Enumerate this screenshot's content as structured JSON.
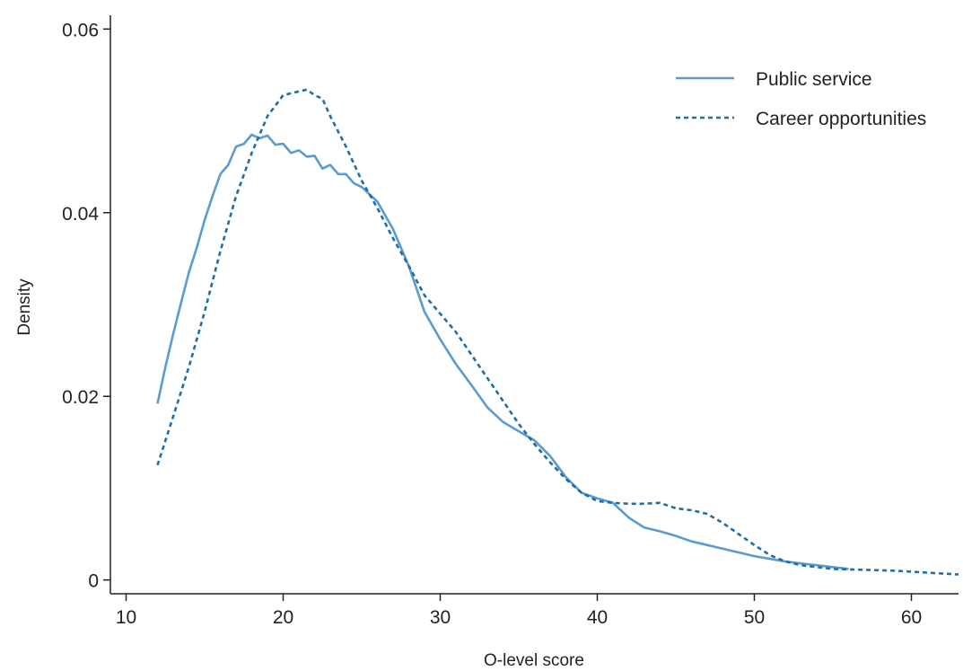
{
  "chart_data": {
    "type": "line",
    "xlabel": "O-level score",
    "ylabel": "Density",
    "xlim": [
      9,
      63
    ],
    "ylim": [
      -0.0015,
      0.0615
    ],
    "x_ticks": [
      10,
      20,
      30,
      40,
      50,
      60
    ],
    "x_tick_labels": [
      "10",
      "20",
      "30",
      "40",
      "50",
      "60"
    ],
    "y_ticks": [
      0,
      0.02,
      0.04,
      0.06
    ],
    "y_tick_labels": [
      "0",
      "0.02",
      "0.04",
      "0.06"
    ],
    "grid": false,
    "legend_position": "top-right",
    "series": [
      {
        "name": "Public service",
        "style": "solid",
        "color": "#5b9bcf",
        "x": [
          12,
          12.5,
          13,
          13.5,
          14,
          14.5,
          15,
          15.5,
          16,
          16.5,
          17,
          17.5,
          18,
          18.5,
          19,
          19.5,
          20,
          20.5,
          21,
          21.5,
          22,
          22.5,
          23,
          23.5,
          24,
          24.5,
          25,
          26,
          27,
          28,
          29,
          30,
          31,
          32,
          33,
          34,
          35,
          36,
          37,
          38,
          39,
          40,
          41,
          42,
          43,
          44,
          45,
          46,
          48,
          50,
          52,
          54,
          56
        ],
        "y": [
          0.0192,
          0.0232,
          0.0268,
          0.0302,
          0.0335,
          0.0362,
          0.0392,
          0.0418,
          0.0442,
          0.0452,
          0.0472,
          0.0475,
          0.0485,
          0.0481,
          0.0484,
          0.0474,
          0.0475,
          0.0465,
          0.0468,
          0.0461,
          0.0462,
          0.0448,
          0.0452,
          0.0442,
          0.0442,
          0.0432,
          0.0428,
          0.0412,
          0.0382,
          0.0342,
          0.0292,
          0.0262,
          0.0235,
          0.0212,
          0.0188,
          0.0172,
          0.0162,
          0.0152,
          0.0135,
          0.0112,
          0.0095,
          0.0089,
          0.0084,
          0.0068,
          0.0057,
          0.0053,
          0.0048,
          0.0042,
          0.0034,
          0.0026,
          0.002,
          0.0016,
          0.0012
        ]
      },
      {
        "name": "Career opportunities",
        "style": "dashed",
        "color": "#1f6ea8",
        "x": [
          12,
          13,
          14,
          15,
          16,
          17,
          18,
          19,
          20,
          21,
          21.5,
          22,
          22.5,
          23,
          24,
          25,
          26,
          27,
          28,
          29,
          30,
          31,
          32,
          33,
          34,
          35,
          36,
          37,
          38,
          39,
          40,
          41,
          42,
          43,
          44,
          45,
          46,
          47,
          48,
          49,
          50,
          51,
          52,
          53,
          55,
          57,
          59,
          61,
          63
        ],
        "y": [
          0.0125,
          0.0178,
          0.0232,
          0.0292,
          0.0358,
          0.0418,
          0.0465,
          0.0505,
          0.0528,
          0.0532,
          0.0534,
          0.0528,
          0.0524,
          0.0505,
          0.0472,
          0.0435,
          0.0405,
          0.0372,
          0.0342,
          0.031,
          0.029,
          0.027,
          0.0245,
          0.022,
          0.0195,
          0.017,
          0.0148,
          0.0128,
          0.011,
          0.0095,
          0.0086,
          0.0084,
          0.0083,
          0.0083,
          0.0084,
          0.0078,
          0.0076,
          0.0072,
          0.0062,
          0.005,
          0.0038,
          0.0027,
          0.002,
          0.0016,
          0.0012,
          0.0011,
          0.001,
          0.0008,
          0.0006
        ]
      }
    ]
  }
}
